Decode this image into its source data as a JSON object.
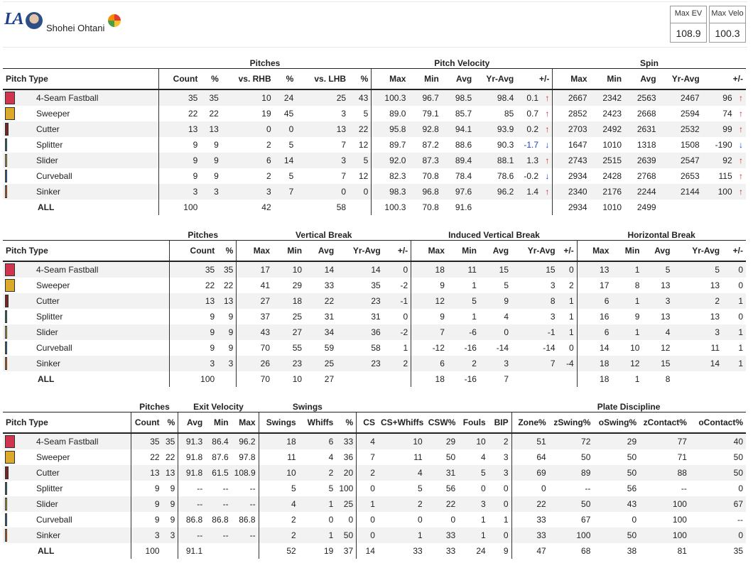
{
  "player": {
    "team_logo": "LA",
    "name": "Shohei Ohtani"
  },
  "icons": {
    "avatar": "player-headshot",
    "flag": "country-flag-icon"
  },
  "stat_boxes": [
    {
      "label": "Max EV",
      "value": "108.9"
    },
    {
      "label": "Max Velo",
      "value": "100.3"
    }
  ],
  "pitch_types": [
    {
      "name": "4-Seam Fastball",
      "color": "#d0344f",
      "swatch": "full"
    },
    {
      "name": "Sweeper",
      "color": "#dcaa2a",
      "swatch": "full"
    },
    {
      "name": "Cutter",
      "color": "#7a2320",
      "swatch": "narrow"
    },
    {
      "name": "Splitter",
      "color": "#2f7f7a",
      "swatch": "thin"
    },
    {
      "name": "Slider",
      "color": "#c9bf52",
      "swatch": "thin"
    },
    {
      "name": "Curveball",
      "color": "#3f73b0",
      "swatch": "thin"
    },
    {
      "name": "Sinker",
      "color": "#e8782a",
      "swatch": "thin"
    }
  ],
  "tables": [
    {
      "groups": [
        {
          "label": "",
          "span": 1
        },
        {
          "label": "Pitches",
          "span": 6
        },
        {
          "label": "Pitch Velocity",
          "span": 5
        },
        {
          "label": "Spin",
          "span": 5
        }
      ],
      "headers": [
        "Pitch Type",
        "Count",
        "%",
        "vs. RHB",
        "%",
        "vs. LHB",
        "%",
        "Max",
        "Min",
        "Avg",
        "Yr-Avg",
        "+/-",
        "Max",
        "Min",
        "Avg",
        "Yr-Avg",
        "+/-"
      ],
      "widths": [
        208,
        56,
        28,
        70,
        30,
        70,
        30,
        50,
        44,
        44,
        56,
        48,
        50,
        46,
        46,
        58,
        58
      ],
      "group_borders": [
        1,
        7,
        12
      ],
      "rows": [
        [
          "35",
          "35",
          "10",
          "24",
          "25",
          "43",
          "100.3",
          "96.7",
          "98.5",
          "98.4",
          {
            "v": "0.1",
            "d": "up"
          },
          "2667",
          "2342",
          "2563",
          "2467",
          {
            "v": "96",
            "d": "up"
          }
        ],
        [
          "22",
          "22",
          "19",
          "45",
          "3",
          "5",
          "89.0",
          "79.1",
          "85.7",
          "85",
          {
            "v": "0.7",
            "d": "up"
          },
          "2852",
          "2423",
          "2668",
          "2594",
          {
            "v": "74",
            "d": "up"
          }
        ],
        [
          "13",
          "13",
          "0",
          "0",
          "13",
          "22",
          "95.8",
          "92.8",
          "94.1",
          "93.9",
          {
            "v": "0.2",
            "d": "up"
          },
          "2703",
          "2492",
          "2631",
          "2532",
          {
            "v": "99",
            "d": "up"
          }
        ],
        [
          "9",
          "9",
          "2",
          "5",
          "7",
          "12",
          "89.7",
          "87.2",
          "88.6",
          "90.3",
          {
            "v": "-1.7",
            "d": "down",
            "neg": true
          },
          "1647",
          "1010",
          "1318",
          "1508",
          {
            "v": "-190",
            "d": "down"
          }
        ],
        [
          "9",
          "9",
          "6",
          "14",
          "3",
          "5",
          "92.0",
          "87.3",
          "89.4",
          "88.1",
          {
            "v": "1.3",
            "d": "up"
          },
          "2743",
          "2515",
          "2639",
          "2547",
          {
            "v": "92",
            "d": "up"
          }
        ],
        [
          "9",
          "9",
          "2",
          "5",
          "7",
          "12",
          "82.3",
          "70.8",
          "78.4",
          "78.6",
          {
            "v": "-0.2",
            "d": "down"
          },
          "2934",
          "2428",
          "2768",
          "2653",
          {
            "v": "115",
            "d": "up"
          }
        ],
        [
          "3",
          "3",
          "3",
          "7",
          "0",
          "0",
          "98.3",
          "96.8",
          "97.6",
          "96.2",
          {
            "v": "1.4",
            "d": "up"
          },
          "2340",
          "2176",
          "2244",
          "2144",
          {
            "v": "100",
            "d": "up"
          }
        ]
      ],
      "all": [
        "100",
        "",
        "42",
        "",
        "58",
        "",
        "100.3",
        "70.8",
        "91.6",
        "",
        "",
        "2934",
        "1010",
        "2499",
        "",
        ""
      ]
    },
    {
      "groups": [
        {
          "label": "",
          "span": 1
        },
        {
          "label": "Pitches",
          "span": 2
        },
        {
          "label": "Vertical Break",
          "span": 5
        },
        {
          "label": "Induced Vertical Break",
          "span": 5
        },
        {
          "label": "Horizontal Break",
          "span": 5
        }
      ],
      "headers": [
        "Pitch Type",
        "Count",
        "%",
        "Max",
        "Min",
        "Avg",
        "Yr-Avg",
        "+/-",
        "Max",
        "Min",
        "Avg",
        "Yr-Avg",
        "+/-",
        "Max",
        "Min",
        "Avg",
        "Yr-Avg",
        "+/-"
      ],
      "widths": [
        229,
        66,
        26,
        50,
        44,
        44,
        64,
        38,
        50,
        44,
        44,
        64,
        26,
        48,
        42,
        42,
        68,
        32
      ],
      "group_borders": [
        1,
        3,
        8,
        13
      ],
      "rows": [
        [
          "35",
          "35",
          "17",
          "10",
          "14",
          "14",
          "0",
          "18",
          "11",
          "15",
          "15",
          "0",
          "13",
          "1",
          "5",
          "5",
          "0"
        ],
        [
          "22",
          "22",
          "41",
          "29",
          "33",
          "35",
          "-2",
          "9",
          "1",
          "5",
          "3",
          "2",
          "17",
          "8",
          "13",
          "13",
          "0"
        ],
        [
          "13",
          "13",
          "27",
          "18",
          "22",
          "23",
          "-1",
          "12",
          "5",
          "9",
          "8",
          "1",
          "6",
          "1",
          "3",
          "2",
          "1"
        ],
        [
          "9",
          "9",
          "37",
          "25",
          "31",
          "31",
          "0",
          "9",
          "1",
          "4",
          "3",
          "1",
          "16",
          "9",
          "13",
          "13",
          "0"
        ],
        [
          "9",
          "9",
          "43",
          "27",
          "34",
          "36",
          "-2",
          "7",
          "-6",
          "0",
          "-1",
          "1",
          "6",
          "1",
          "4",
          "3",
          "1"
        ],
        [
          "9",
          "9",
          "70",
          "55",
          "59",
          "58",
          "1",
          "-12",
          "-16",
          "-14",
          "-14",
          "0",
          "14",
          "10",
          "12",
          "11",
          "1"
        ],
        [
          "3",
          "3",
          "26",
          "23",
          "25",
          "23",
          "2",
          "6",
          "2",
          "3",
          "7",
          "-4",
          "18",
          "12",
          "15",
          "14",
          "1"
        ]
      ],
      "all": [
        "100",
        "",
        "70",
        "10",
        "27",
        "",
        "",
        "18",
        "-16",
        "7",
        "",
        "",
        "18",
        "1",
        "8",
        "",
        ""
      ]
    },
    {
      "groups": [
        {
          "label": "",
          "span": 1
        },
        {
          "label": "Pitches",
          "span": 2
        },
        {
          "label": "Exit Velocity",
          "span": 3
        },
        {
          "label": "Swings",
          "span": 3
        },
        {
          "label": "",
          "span": 5
        },
        {
          "label": "Plate Discipline",
          "span": 5
        }
      ],
      "headers": [
        "Pitch Type",
        "Count",
        "%",
        "Avg",
        "Min",
        "Max",
        "Swings",
        "Whiffs",
        "%",
        "CS",
        "CS+Whiffs",
        "CSW%",
        "Fouls",
        "BIP",
        "Zone%",
        "zSwing%",
        "oSwing%",
        "zContact%",
        "oContact%"
      ],
      "widths": [
        178,
        44,
        22,
        38,
        36,
        38,
        56,
        52,
        28,
        30,
        66,
        46,
        42,
        32,
        52,
        62,
        64,
        70,
        78
      ],
      "group_borders": [
        1,
        3,
        6,
        9,
        14
      ],
      "rows": [
        [
          "35",
          "35",
          "91.3",
          "86.4",
          "96.2",
          "18",
          "6",
          "33",
          "4",
          "10",
          "29",
          "10",
          "2",
          "51",
          "72",
          "29",
          "77",
          "40"
        ],
        [
          "22",
          "22",
          "91.8",
          "87.6",
          "97.8",
          "11",
          "4",
          "36",
          "7",
          "11",
          "50",
          "4",
          "3",
          "64",
          "50",
          "50",
          "71",
          "50"
        ],
        [
          "13",
          "13",
          "91.8",
          "61.5",
          "108.9",
          "10",
          "2",
          "20",
          "2",
          "4",
          "31",
          "5",
          "3",
          "69",
          "89",
          "50",
          "88",
          "50"
        ],
        [
          "9",
          "9",
          "--",
          "--",
          "--",
          "5",
          "5",
          "100",
          "0",
          "5",
          "56",
          "0",
          "0",
          "0",
          "--",
          "56",
          "--",
          "0"
        ],
        [
          "9",
          "9",
          "--",
          "--",
          "--",
          "4",
          "1",
          "25",
          "1",
          "2",
          "22",
          "3",
          "0",
          "22",
          "50",
          "43",
          "100",
          "67"
        ],
        [
          "9",
          "9",
          "86.8",
          "86.8",
          "86.8",
          "2",
          "0",
          "0",
          "0",
          "0",
          "0",
          "1",
          "1",
          "33",
          "67",
          "0",
          "100",
          "--"
        ],
        [
          "3",
          "3",
          "--",
          "--",
          "--",
          "2",
          "1",
          "50",
          "0",
          "1",
          "33",
          "1",
          "0",
          "33",
          "100",
          "50",
          "100",
          "0"
        ]
      ],
      "all": [
        "100",
        "",
        "91.1",
        "",
        "",
        "52",
        "19",
        "37",
        "14",
        "33",
        "33",
        "24",
        "9",
        "47",
        "68",
        "38",
        "81",
        "35"
      ]
    }
  ],
  "all_label": "ALL"
}
